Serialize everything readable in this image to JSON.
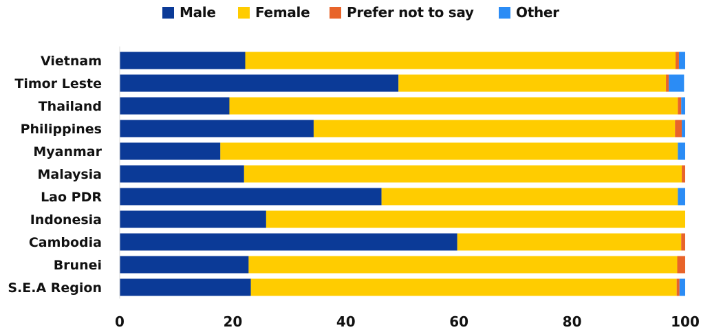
{
  "chart_data": {
    "type": "bar",
    "orientation": "horizontal",
    "stacked": true,
    "title": "",
    "xlabel": "",
    "ylabel": "",
    "xlim": [
      0,
      100
    ],
    "x_ticks": [
      "0",
      "20",
      "40",
      "60",
      "80",
      "100"
    ],
    "legend_position": "top",
    "grid": false,
    "categories": [
      "Vietnam",
      "Timor Leste",
      "Thailand",
      "Philippines",
      "Myanmar",
      "Malaysia",
      "Lao PDR",
      "Indonesia",
      "Cambodia",
      "Brunei",
      "S.E.A Region"
    ],
    "series": [
      {
        "name": "Male",
        "color": "#0b3a97",
        "values": [
          22.2,
          49.3,
          19.4,
          34.3,
          17.8,
          22.0,
          46.3,
          25.9,
          59.7,
          22.8,
          23.2
        ]
      },
      {
        "name": "Female",
        "color": "#ffcc00",
        "values": [
          76.1,
          47.3,
          79.3,
          63.9,
          80.9,
          77.4,
          52.4,
          74.1,
          39.6,
          75.8,
          75.3
        ]
      },
      {
        "name": "Prefer not to say",
        "color": "#e8642a",
        "values": [
          0.6,
          0.5,
          0.6,
          1.2,
          0.0,
          0.6,
          0.0,
          0.0,
          0.7,
          1.4,
          0.5
        ]
      },
      {
        "name": "Other",
        "color": "#2b8cf5",
        "values": [
          1.1,
          2.7,
          0.7,
          0.6,
          1.3,
          0.0,
          1.3,
          0.0,
          0.0,
          0.0,
          1.0
        ]
      }
    ]
  }
}
